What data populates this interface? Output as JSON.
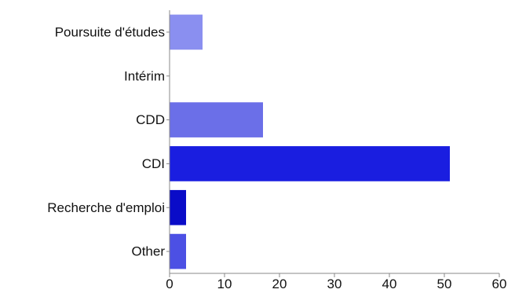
{
  "chart_data": {
    "type": "bar",
    "orientation": "horizontal",
    "title": "",
    "xlabel": "",
    "ylabel": "",
    "categories": [
      "Poursuite d'études",
      "Intérim",
      "CDD",
      "CDI",
      "Recherche d'emploi",
      "Other"
    ],
    "values": [
      6,
      0,
      17,
      51,
      3,
      3
    ],
    "colors": [
      "#8a8ff0",
      "#7f84ee",
      "#6b6fe8",
      "#1a1ee0",
      "#0a0cc8",
      "#4c50e4"
    ],
    "xlim": [
      0,
      60
    ],
    "xticks": [
      0,
      10,
      20,
      30,
      40,
      50,
      60
    ],
    "grid": false,
    "legend": "none"
  }
}
